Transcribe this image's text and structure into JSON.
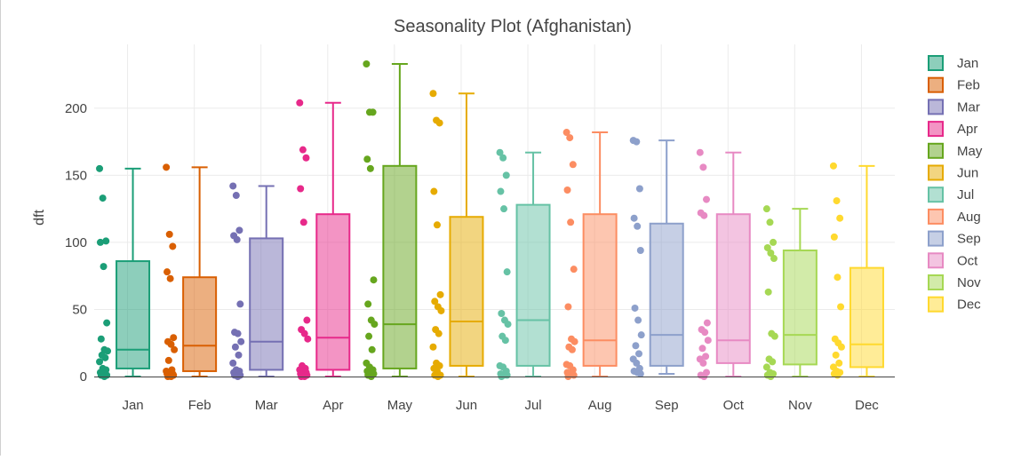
{
  "chart_data": {
    "type": "box",
    "title": "Seasonality Plot (Afghanistan)",
    "xlabel": "",
    "ylabel": "dft",
    "ylim": [
      0,
      245
    ],
    "yticks": [
      0,
      50,
      100,
      150,
      200
    ],
    "grid": true,
    "legend_position": "right",
    "categories": [
      "Jan",
      "Feb",
      "Mar",
      "Apr",
      "May",
      "Jun",
      "Jul",
      "Aug",
      "Sep",
      "Oct",
      "Nov",
      "Dec"
    ],
    "series": [
      {
        "name": "Jan",
        "color": "#1b9e77",
        "box": {
          "min": 0,
          "q1": 6,
          "median": 20,
          "q3": 86,
          "max": 155
        },
        "points": [
          155,
          133,
          101,
          100,
          82,
          40,
          28,
          20,
          19,
          16,
          14,
          11,
          6,
          5,
          3,
          2,
          1,
          1,
          0
        ]
      },
      {
        "name": "Feb",
        "color": "#d95f02",
        "box": {
          "min": 0,
          "q1": 4,
          "median": 23,
          "q3": 74,
          "max": 156
        },
        "points": [
          156,
          106,
          97,
          78,
          73,
          29,
          26,
          24,
          20,
          12,
          5,
          4,
          3,
          2,
          2,
          1,
          1,
          0,
          0
        ]
      },
      {
        "name": "Mar",
        "color": "#7570b3",
        "box": {
          "min": 0,
          "q1": 5,
          "median": 26,
          "q3": 103,
          "max": 142
        },
        "points": [
          142,
          135,
          109,
          105,
          102,
          54,
          33,
          32,
          26,
          22,
          16,
          10,
          5,
          4,
          3,
          2,
          1,
          1,
          0
        ]
      },
      {
        "name": "Apr",
        "color": "#e7298a",
        "box": {
          "min": 0,
          "q1": 5,
          "median": 29,
          "q3": 121,
          "max": 204
        },
        "points": [
          204,
          169,
          163,
          140,
          115,
          42,
          35,
          32,
          28,
          8,
          6,
          5,
          4,
          3,
          2,
          1,
          1,
          0,
          0
        ]
      },
      {
        "name": "May",
        "color": "#66a61e",
        "box": {
          "min": 0,
          "q1": 6,
          "median": 39,
          "q3": 157,
          "max": 233
        },
        "points": [
          233,
          197,
          197,
          162,
          155,
          72,
          54,
          42,
          39,
          30,
          20,
          10,
          7,
          5,
          4,
          3,
          2,
          1,
          0
        ]
      },
      {
        "name": "Jun",
        "color": "#e6ab02",
        "box": {
          "min": 0,
          "q1": 8,
          "median": 41,
          "q3": 119,
          "max": 211
        },
        "points": [
          211,
          191,
          189,
          138,
          113,
          61,
          56,
          52,
          49,
          35,
          32,
          22,
          10,
          8,
          6,
          4,
          1,
          1,
          0
        ]
      },
      {
        "name": "Jul",
        "color": "#66c2a5",
        "box": {
          "min": 0,
          "q1": 8,
          "median": 42,
          "q3": 128,
          "max": 167
        },
        "points": [
          167,
          163,
          150,
          138,
          125,
          78,
          47,
          42,
          39,
          30,
          27,
          8,
          7,
          4,
          2,
          1,
          1,
          0
        ]
      },
      {
        "name": "Aug",
        "color": "#fc8d62",
        "box": {
          "min": 0,
          "q1": 8,
          "median": 27,
          "q3": 121,
          "max": 182
        },
        "points": [
          182,
          178,
          158,
          139,
          115,
          80,
          52,
          28,
          26,
          22,
          20,
          9,
          8,
          5,
          3,
          2,
          1,
          0
        ]
      },
      {
        "name": "Sep",
        "color": "#8da0cb",
        "box": {
          "min": 2,
          "q1": 8,
          "median": 31,
          "q3": 114,
          "max": 176
        },
        "points": [
          176,
          175,
          140,
          118,
          112,
          94,
          51,
          42,
          31,
          23,
          17,
          13,
          10,
          6,
          4,
          3,
          2
        ]
      },
      {
        "name": "Oct",
        "color": "#e78ac3",
        "box": {
          "min": 0,
          "q1": 10,
          "median": 27,
          "q3": 121,
          "max": 167
        },
        "points": [
          167,
          156,
          132,
          122,
          120,
          40,
          35,
          33,
          27,
          21,
          15,
          13,
          10,
          3,
          1,
          0
        ]
      },
      {
        "name": "Nov",
        "color": "#a6d854",
        "box": {
          "min": 0,
          "q1": 9,
          "median": 31,
          "q3": 94,
          "max": 125
        },
        "points": [
          125,
          115,
          100,
          96,
          92,
          88,
          63,
          32,
          30,
          13,
          11,
          7,
          3,
          2,
          1,
          0
        ]
      },
      {
        "name": "Dec",
        "color": "#ffd92f",
        "box": {
          "min": 0,
          "q1": 7,
          "median": 24,
          "q3": 81,
          "max": 157
        },
        "points": [
          157,
          131,
          118,
          104,
          74,
          52,
          28,
          25,
          22,
          16,
          10,
          7,
          4,
          3,
          2,
          1
        ]
      }
    ]
  }
}
